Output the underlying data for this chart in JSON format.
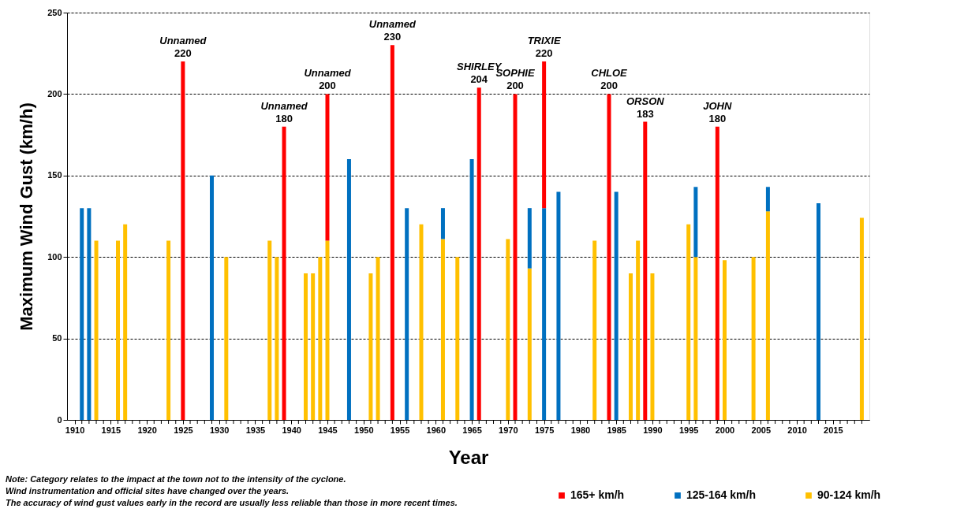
{
  "chart_data": {
    "type": "bar",
    "stacked": true,
    "xlabel": "Year",
    "ylabel": "Maximum Wind Gust (km/h)",
    "x": [
      1911,
      1912,
      1913,
      1916,
      1917,
      1923,
      1925,
      1929,
      1931,
      1937,
      1938,
      1939,
      1942,
      1943,
      1944,
      1945,
      1948,
      1951,
      1952,
      1954,
      1956,
      1958,
      1961,
      1963,
      1965,
      1966,
      1970,
      1971,
      1973,
      1975,
      1977,
      1982,
      1984,
      1985,
      1987,
      1988,
      1989,
      1990,
      1995,
      1996,
      1999,
      2000,
      2004,
      2006,
      2013,
      2019
    ],
    "series": [
      {
        "name": "90-124 km/h",
        "color": "#ffc000",
        "values": [
          null,
          null,
          110,
          110,
          120,
          110,
          null,
          null,
          100,
          110,
          100,
          null,
          90,
          90,
          100,
          110,
          null,
          90,
          100,
          null,
          null,
          120,
          111,
          100,
          null,
          null,
          111,
          null,
          93,
          null,
          null,
          110,
          null,
          null,
          90,
          110,
          null,
          90,
          120,
          100,
          null,
          98,
          100,
          128,
          null,
          124
        ]
      },
      {
        "name": "125-164 km/h",
        "color": "#0070c0",
        "values": [
          130,
          130,
          null,
          null,
          null,
          null,
          null,
          150,
          null,
          null,
          null,
          null,
          null,
          null,
          null,
          null,
          160,
          null,
          null,
          null,
          130,
          null,
          19,
          null,
          160,
          null,
          null,
          null,
          37,
          130,
          140,
          null,
          null,
          140,
          null,
          null,
          null,
          null,
          null,
          43,
          null,
          null,
          null,
          15,
          133,
          null
        ]
      },
      {
        "name": "165+ km/h",
        "color": "#ff0000",
        "values": [
          null,
          null,
          null,
          null,
          null,
          null,
          220,
          null,
          null,
          null,
          null,
          180,
          null,
          null,
          null,
          90,
          null,
          null,
          null,
          230,
          null,
          null,
          null,
          null,
          null,
          204,
          null,
          200,
          null,
          90,
          null,
          null,
          200,
          null,
          null,
          null,
          183,
          null,
          null,
          null,
          180,
          null,
          null,
          null,
          null,
          null
        ]
      }
    ],
    "totals": [
      null,
      null,
      null,
      null,
      null,
      null,
      "220",
      null,
      null,
      null,
      null,
      "180",
      null,
      null,
      null,
      "200",
      null,
      null,
      null,
      "230",
      null,
      null,
      null,
      null,
      null,
      "204",
      null,
      "200",
      null,
      "220",
      null,
      null,
      "200",
      null,
      null,
      null,
      "183",
      null,
      null,
      null,
      "180",
      null,
      null,
      null,
      null,
      null
    ],
    "xlim": [
      1909.5,
      2019.5
    ],
    "xticks": [
      1910,
      {
        "value": 1911,
        "label": null
      },
      {
        "value": 1912,
        "label": null
      },
      {
        "value": 1913,
        "label": null
      },
      {
        "value": 1914,
        "label": null
      },
      1915,
      {
        "value": 1916,
        "label": null
      },
      {
        "value": 1917,
        "label": null
      },
      {
        "value": 1918,
        "label": null
      },
      {
        "value": 1919,
        "label": null
      },
      1920,
      {
        "value": 1921,
        "label": null
      },
      {
        "value": 1922,
        "label": null
      },
      {
        "value": 1923,
        "label": null
      },
      {
        "value": 1924,
        "label": null
      },
      1925,
      {
        "value": 1926,
        "label": null
      },
      {
        "value": 1927,
        "label": null
      },
      {
        "value": 1928,
        "label": null
      },
      {
        "value": 1929,
        "label": null
      },
      1930,
      {
        "value": 1931,
        "label": null
      },
      {
        "value": 1932,
        "label": null
      },
      {
        "value": 1933,
        "label": null
      },
      {
        "value": 1934,
        "label": null
      },
      1935,
      {
        "value": 1936,
        "label": null
      },
      {
        "value": 1937,
        "label": null
      },
      {
        "value": 1938,
        "label": null
      },
      {
        "value": 1939,
        "label": null
      },
      1940,
      {
        "value": 1941,
        "label": null
      },
      {
        "value": 1942,
        "label": null
      },
      {
        "value": 1943,
        "label": null
      },
      {
        "value": 1944,
        "label": null
      },
      1945,
      {
        "value": 1946,
        "label": null
      },
      {
        "value": 1947,
        "label": null
      },
      {
        "value": 1948,
        "label": null
      },
      {
        "value": 1949,
        "label": null
      },
      1950,
      {
        "value": 1951,
        "label": null
      },
      {
        "value": 1952,
        "label": null
      },
      {
        "value": 1953,
        "label": null
      },
      {
        "value": 1954,
        "label": null
      },
      1955,
      {
        "value": 1956,
        "label": null
      },
      {
        "value": 1957,
        "label": null
      },
      {
        "value": 1958,
        "label": null
      },
      {
        "value": 1959,
        "label": null
      },
      1960,
      {
        "value": 1961,
        "label": null
      },
      {
        "value": 1962,
        "label": null
      },
      {
        "value": 1963,
        "label": null
      },
      {
        "value": 1964,
        "label": null
      },
      1965,
      {
        "value": 1966,
        "label": null
      },
      {
        "value": 1967,
        "label": null
      },
      {
        "value": 1968,
        "label": null
      },
      {
        "value": 1969,
        "label": null
      },
      1970,
      {
        "value": 1971,
        "label": null
      },
      {
        "value": 1972,
        "label": null
      },
      {
        "value": 1973,
        "label": null
      },
      {
        "value": 1974,
        "label": null
      },
      1975,
      {
        "value": 1976,
        "label": null
      },
      {
        "value": 1977,
        "label": null
      },
      {
        "value": 1978,
        "label": null
      },
      {
        "value": 1979,
        "label": null
      },
      1980,
      {
        "value": 1981,
        "label": null
      },
      {
        "value": 1982,
        "label": null
      },
      {
        "value": 1983,
        "label": null
      },
      {
        "value": 1984,
        "label": null
      },
      1985,
      {
        "value": 1986,
        "label": null
      },
      {
        "value": 1987,
        "label": null
      },
      {
        "value": 1988,
        "label": null
      },
      {
        "value": 1989,
        "label": null
      },
      1990,
      {
        "value": 1991,
        "label": null
      },
      {
        "value": 1992,
        "label": null
      },
      {
        "value": 1993,
        "label": null
      },
      {
        "value": 1994,
        "label": null
      },
      1995,
      {
        "value": 1996,
        "label": null
      },
      {
        "value": 1997,
        "label": null
      },
      {
        "value": 1998,
        "label": null
      },
      {
        "value": 1999,
        "label": null
      },
      2000,
      {
        "value": 2001,
        "label": null
      },
      {
        "value": 2002,
        "label": null
      },
      {
        "value": 2003,
        "label": null
      },
      {
        "value": 2004,
        "label": null
      },
      2005,
      {
        "value": 2006,
        "label": null
      },
      {
        "value": 2007,
        "label": null
      },
      {
        "value": 2008,
        "label": null
      },
      {
        "value": 2009,
        "label": null
      },
      2010,
      {
        "value": 2011,
        "label": null
      },
      {
        "value": 2012,
        "label": null
      },
      {
        "value": 2013,
        "label": null
      },
      {
        "value": 2014,
        "label": null
      },
      2015,
      {
        "value": 2016,
        "label": null
      },
      {
        "value": 2017,
        "label": null
      },
      {
        "value": 2018,
        "label": null
      },
      {
        "value": 2019,
        "label": null
      }
    ],
    "ylim": [
      0,
      250
    ],
    "yticks": [
      0,
      50,
      100,
      150,
      200,
      250
    ],
    "grid": "y",
    "legend": "bottom right",
    "annotations": [
      {
        "text": "Unnamed",
        "x": 1925,
        "y": 220
      },
      {
        "text": "Unnamed",
        "x": 1939,
        "y": 180
      },
      {
        "text": "Unnamed",
        "x": 1945,
        "y": 200
      },
      {
        "text": "Unnamed",
        "x": 1954,
        "y": 230
      },
      {
        "text": "SHIRLEY",
        "x": 1966,
        "y": 204
      },
      {
        "text": "SOPHIE",
        "x": 1971,
        "y": 200
      },
      {
        "text": "TRIXIE",
        "x": 1975,
        "y": 220
      },
      {
        "text": "CHLOE",
        "x": 1984,
        "y": 200
      },
      {
        "text": "ORSON",
        "x": 1989,
        "y": 183
      },
      {
        "text": "JOHN",
        "x": 1999,
        "y": 180
      },
      "Note: Category relates to the impact at the town not to the intensity of the cyclone.",
      "Wind instrumentation and official sites have changed over the years.",
      "The accuracy of wind gust values early in the record are usually less reliable than those in more recent times."
    ]
  }
}
